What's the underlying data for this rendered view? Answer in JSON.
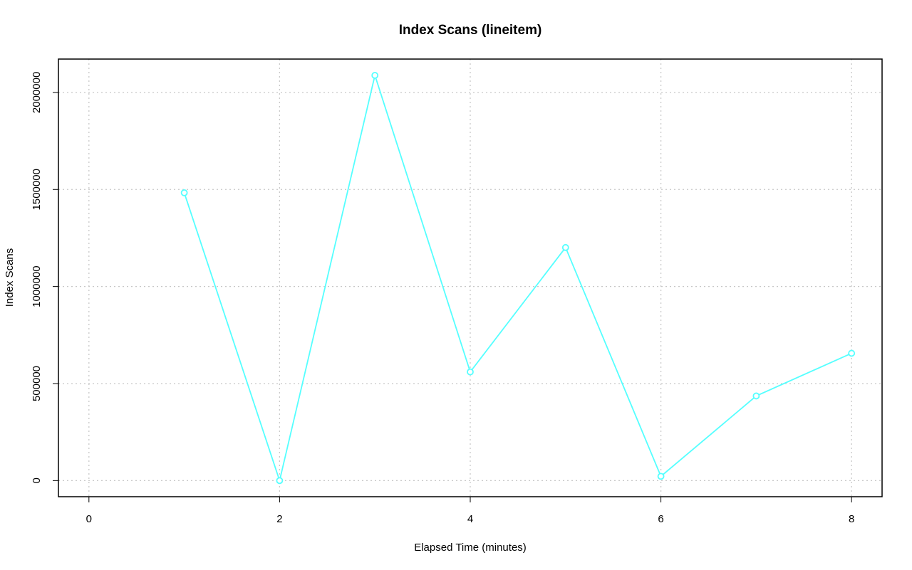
{
  "chart_data": {
    "type": "line",
    "title": "Index Scans (lineitem)",
    "x_label": "Elapsed Time (minutes)",
    "y_label": "Index Scans",
    "x": [
      1,
      2,
      3,
      4,
      5,
      6,
      7,
      8
    ],
    "series": [
      {
        "name": "lineitem",
        "color": "#55ffff",
        "values": [
          1483000,
          0,
          2088000,
          560000,
          1201000,
          22000,
          436000,
          656000
        ]
      }
    ],
    "xlim": [
      -0.32,
      8.32
    ],
    "xticks": [
      0,
      2,
      4,
      6,
      8
    ],
    "ylim": [
      -83000,
      2172000
    ],
    "yticks": [
      0,
      500000,
      1000000,
      1500000,
      2000000
    ],
    "grid": true
  }
}
